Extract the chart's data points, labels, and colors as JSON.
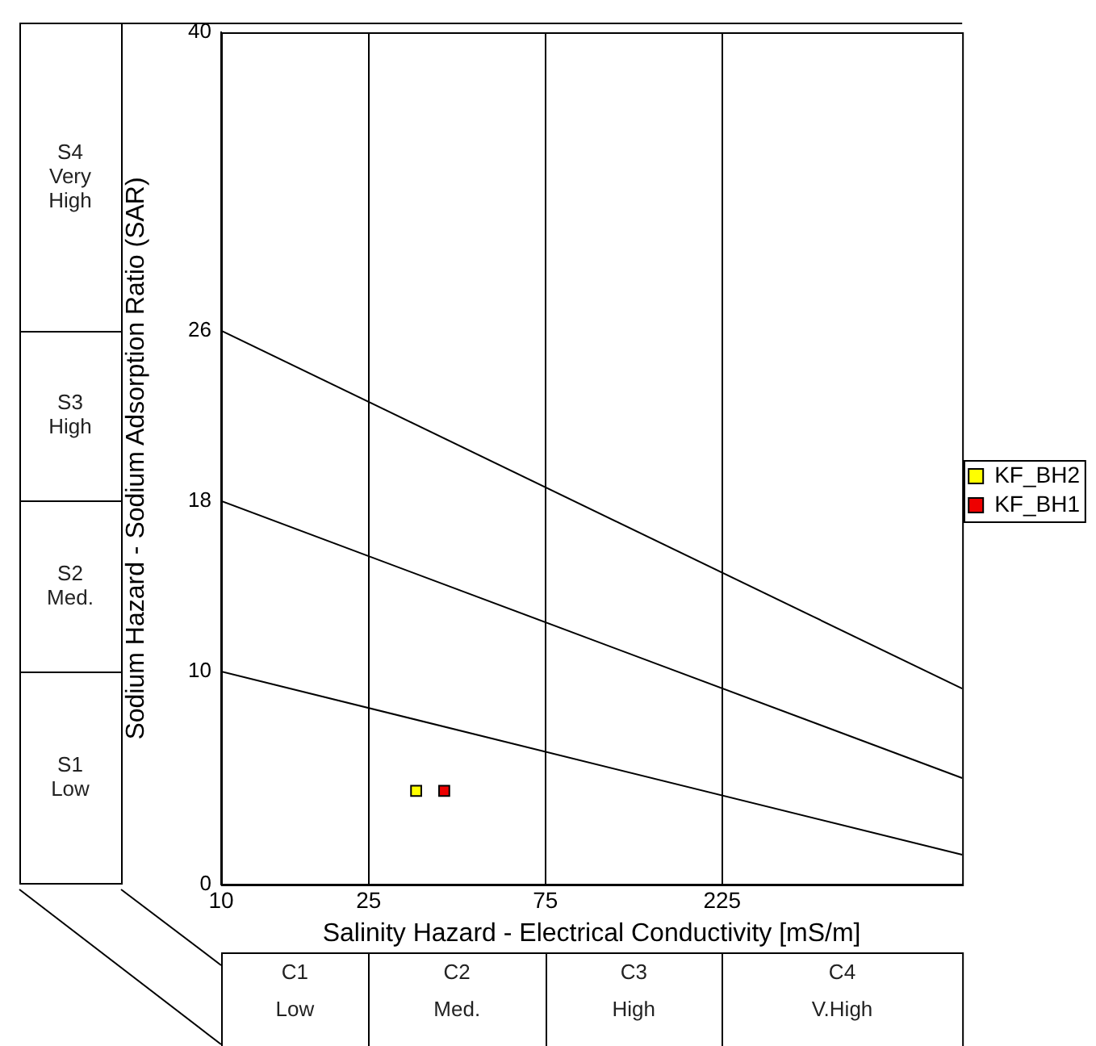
{
  "chart_data": {
    "type": "scatter",
    "xlabel": "Salinity Hazard - Electrical Conductivity [mS/m]",
    "ylabel": "Sodium Hazard - Sodium Adsorption Ratio (SAR)",
    "log": "x",
    "xlim": [
      10,
      1000
    ],
    "xticks": [
      10,
      25,
      75,
      225
    ],
    "ylim": [
      0,
      40
    ],
    "yticks": [
      0,
      10,
      18,
      26,
      40
    ],
    "grid": "x",
    "legend": "right",
    "marker": "square",
    "annotations": [
      "S4 Very High",
      "S3 High",
      "S2 Med.",
      "S1 Low",
      "C1 Low",
      "C2 Med.",
      "C3 High",
      "C4 V.High"
    ],
    "series": [
      {
        "type": "line",
        "color": "#000000",
        "x": [
          10,
          1000
        ],
        "values": [
          26,
          9.2
        ],
        "marker": "none"
      },
      {
        "type": "line",
        "color": "#000000",
        "x": [
          10,
          1000
        ],
        "values": [
          18,
          5.0
        ],
        "marker": "none"
      },
      {
        "type": "line",
        "color": "#000000",
        "x": [
          10,
          1000
        ],
        "values": [
          10,
          1.4
        ],
        "marker": "none"
      },
      {
        "name": "KF_BH2",
        "color": "#ffff00",
        "x": [
          33.6
        ],
        "values": [
          4.4
        ]
      },
      {
        "name": "KF_BH1",
        "color": "#ee0000",
        "x": [
          40
        ],
        "values": [
          4.4
        ]
      }
    ]
  }
}
